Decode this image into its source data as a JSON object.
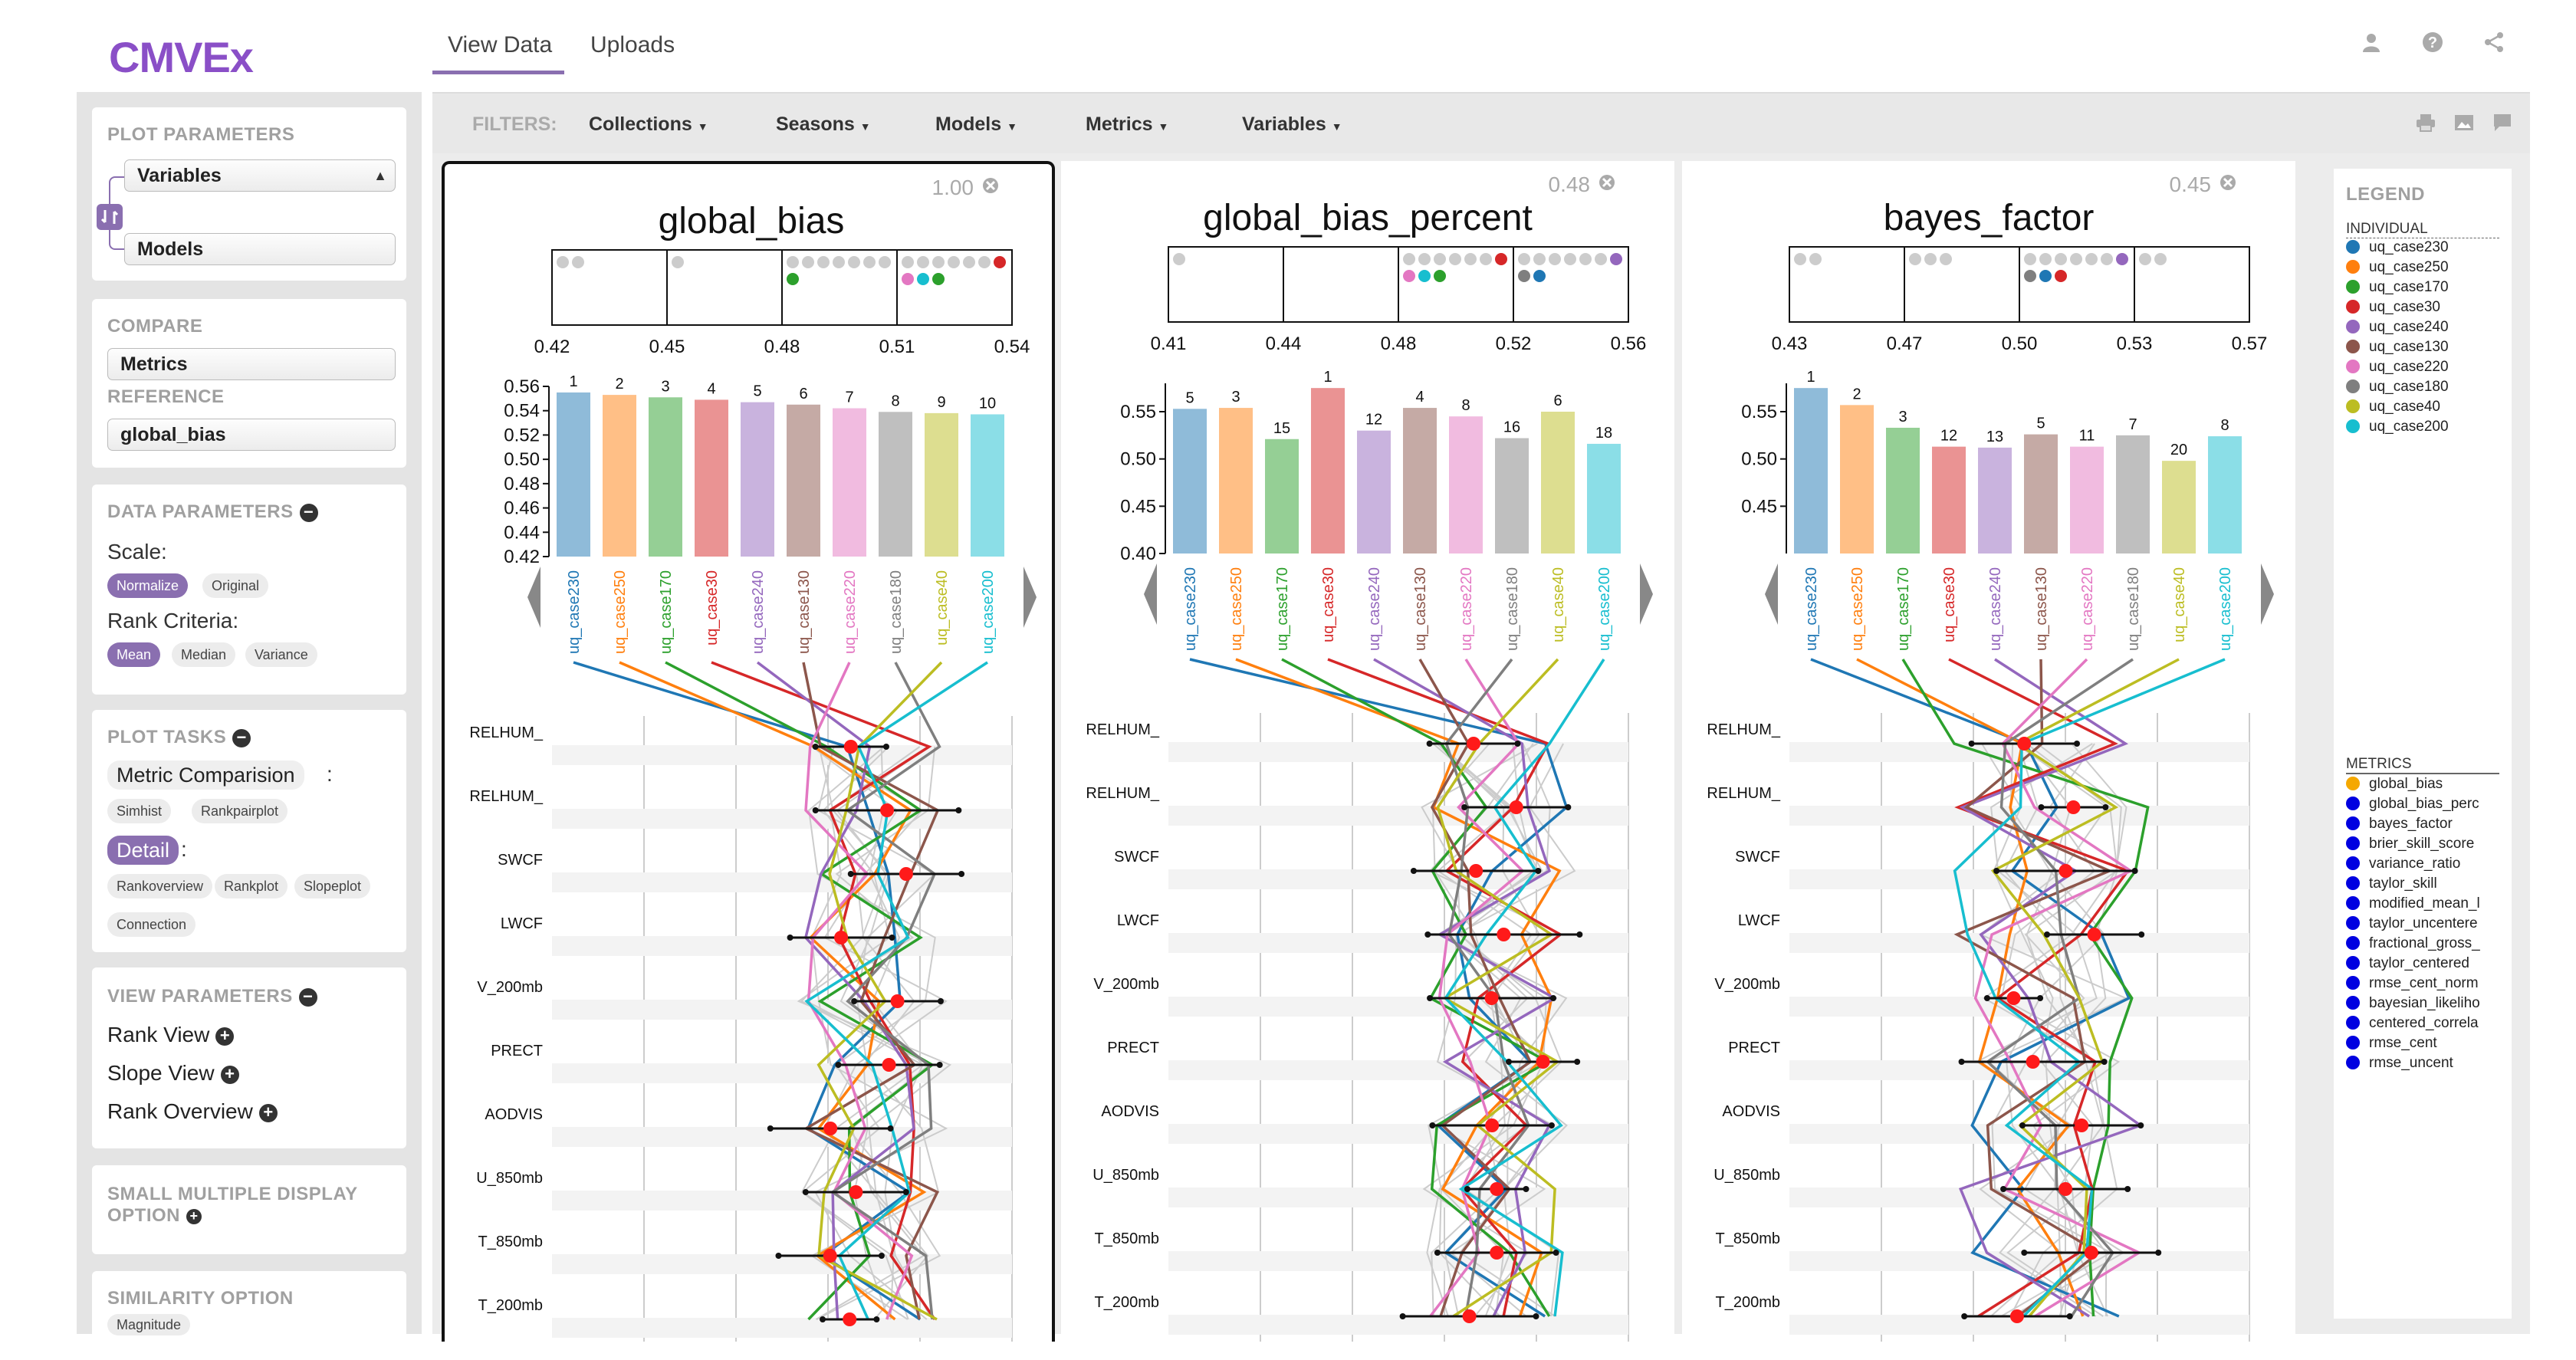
{
  "app": {
    "logo": "CMVEx"
  },
  "top_tabs": [
    "View Data",
    "Uploads"
  ],
  "top_icons": [
    "user-icon",
    "help-icon",
    "share-icon"
  ],
  "sidebar": {
    "plot_parameters": {
      "title": "PLOT PARAMETERS",
      "select1": "Variables",
      "select2": "Models"
    },
    "compare": {
      "title": "COMPARE",
      "select": "Metrics",
      "reference_title": "REFERENCE",
      "reference_select": "global_bias"
    },
    "data_parameters": {
      "title": "DATA PARAMETERS",
      "scale_label": "Scale:",
      "scale_options": [
        "Normalize",
        "Original"
      ],
      "rank_label": "Rank Criteria:",
      "rank_options": [
        "Mean",
        "Median",
        "Variance"
      ]
    },
    "plot_tasks": {
      "title": "PLOT TASKS",
      "metric_comparison": "Metric Comparision",
      "colon": ":",
      "mc_options": [
        "Simhist",
        "Rankpairplot"
      ],
      "detail": "Detail",
      "detail_colon": ":",
      "detail_options": [
        "Rankoverview",
        "Rankplot",
        "Slopeplot",
        "Connection"
      ]
    },
    "view_parameters": {
      "title": "VIEW PARAMETERS",
      "items": [
        "Rank View",
        "Slope View",
        "Rank Overview"
      ]
    },
    "small_multiple": {
      "title_line1": "SMALL MULTIPLE DISPLAY",
      "title_line2": "OPTION"
    },
    "similarity": {
      "title": "SIMILARITY OPTION",
      "chip": "Magnitude"
    }
  },
  "filters": {
    "label": "FILTERS:",
    "items": [
      "Collections",
      "Seasons",
      "Models",
      "Metrics",
      "Variables"
    ]
  },
  "toolbar_icons": [
    "print-icon",
    "image-icon",
    "comment-icon"
  ],
  "models": [
    "uq_case230",
    "uq_case250",
    "uq_case170",
    "uq_case30",
    "uq_case240",
    "uq_case130",
    "uq_case220",
    "uq_case180",
    "uq_case40",
    "uq_case200"
  ],
  "model_colors": [
    "#1f77b4",
    "#ff7f0e",
    "#2ca02c",
    "#d62728",
    "#9467bd",
    "#8c564b",
    "#e377c2",
    "#7f7f7f",
    "#bcbd22",
    "#17becf"
  ],
  "variables": [
    "RELHUM_",
    "RELHUM_",
    "SWCF",
    "LWCF",
    "V_200mb",
    "PRECT",
    "AODVIS",
    "U_850mb",
    "T_850mb",
    "T_200mb"
  ],
  "chart_data": [
    {
      "type": "bar",
      "title": "global_bias",
      "similarity": "1.00",
      "strip_ticks": [
        "0.42",
        "0.45",
        "0.48",
        "0.51",
        "0.54"
      ],
      "categories": [
        "uq_case230",
        "uq_case250",
        "uq_case170",
        "uq_case30",
        "uq_case240",
        "uq_case130",
        "uq_case220",
        "uq_case180",
        "uq_case40",
        "uq_case200"
      ],
      "values": [
        0.555,
        0.553,
        0.551,
        0.549,
        0.547,
        0.545,
        0.542,
        0.539,
        0.538,
        0.537
      ],
      "ranks": [
        "1",
        "2",
        "3",
        "4",
        "5",
        "6",
        "7",
        "8",
        "9",
        "10"
      ],
      "yticks": [
        "0.56",
        "0.54",
        "0.52",
        "0.50",
        "0.48",
        "0.46",
        "0.44",
        "0.42"
      ],
      "ylim": [
        0.42,
        0.56
      ]
    },
    {
      "type": "bar",
      "title": "global_bias_percent",
      "similarity": "0.48",
      "strip_ticks": [
        "0.41",
        "0.44",
        "0.48",
        "0.52",
        "0.56"
      ],
      "categories": [
        "uq_case230",
        "uq_case250",
        "uq_case170",
        "uq_case30",
        "uq_case240",
        "uq_case130",
        "uq_case220",
        "uq_case180",
        "uq_case40",
        "uq_case200"
      ],
      "values": [
        0.553,
        0.554,
        0.521,
        0.575,
        0.53,
        0.554,
        0.545,
        0.522,
        0.55,
        0.516
      ],
      "ranks": [
        "5",
        "3",
        "15",
        "1",
        "12",
        "4",
        "8",
        "16",
        "6",
        "18"
      ],
      "yticks": [
        "0.55",
        "0.50",
        "0.45",
        "0.40"
      ],
      "ylim": [
        0.4,
        0.58
      ]
    },
    {
      "type": "bar",
      "title": "bayes_factor",
      "similarity": "0.45",
      "strip_ticks": [
        "0.43",
        "0.47",
        "0.50",
        "0.53",
        "0.57"
      ],
      "categories": [
        "uq_case230",
        "uq_case250",
        "uq_case170",
        "uq_case30",
        "uq_case240",
        "uq_case130",
        "uq_case220",
        "uq_case180",
        "uq_case40",
        "uq_case200"
      ],
      "values": [
        0.575,
        0.557,
        0.533,
        0.513,
        0.512,
        0.526,
        0.513,
        0.525,
        0.498,
        0.524
      ],
      "ranks": [
        "1",
        "2",
        "3",
        "12",
        "13",
        "5",
        "11",
        "7",
        "20",
        "8"
      ],
      "yticks": [
        "0.55",
        "0.50",
        "0.45"
      ],
      "ylim": [
        0.4,
        0.58
      ]
    }
  ],
  "legend": {
    "title": "LEGEND",
    "individual_title": "INDIVIDUAL",
    "metrics_title": "METRICS",
    "metrics": [
      "global_bias",
      "global_bias_perc",
      "bayes_factor",
      "brier_skill_score",
      "variance_ratio",
      "taylor_skill",
      "modified_mean_l",
      "taylor_uncentere",
      "fractional_gross_",
      "taylor_centered",
      "rmse_cent_norm",
      "bayesian_likeliho",
      "centered_correla",
      "rmse_cent",
      "rmse_uncent"
    ],
    "metric_colors": [
      "#f5a800",
      "#0000e0",
      "#0000e0",
      "#0000e0",
      "#0000e0",
      "#0000e0",
      "#0000e0",
      "#0000e0",
      "#0000e0",
      "#0000e0",
      "#0000e0",
      "#0000e0",
      "#0000e0",
      "#0000e0",
      "#0000e0"
    ]
  }
}
